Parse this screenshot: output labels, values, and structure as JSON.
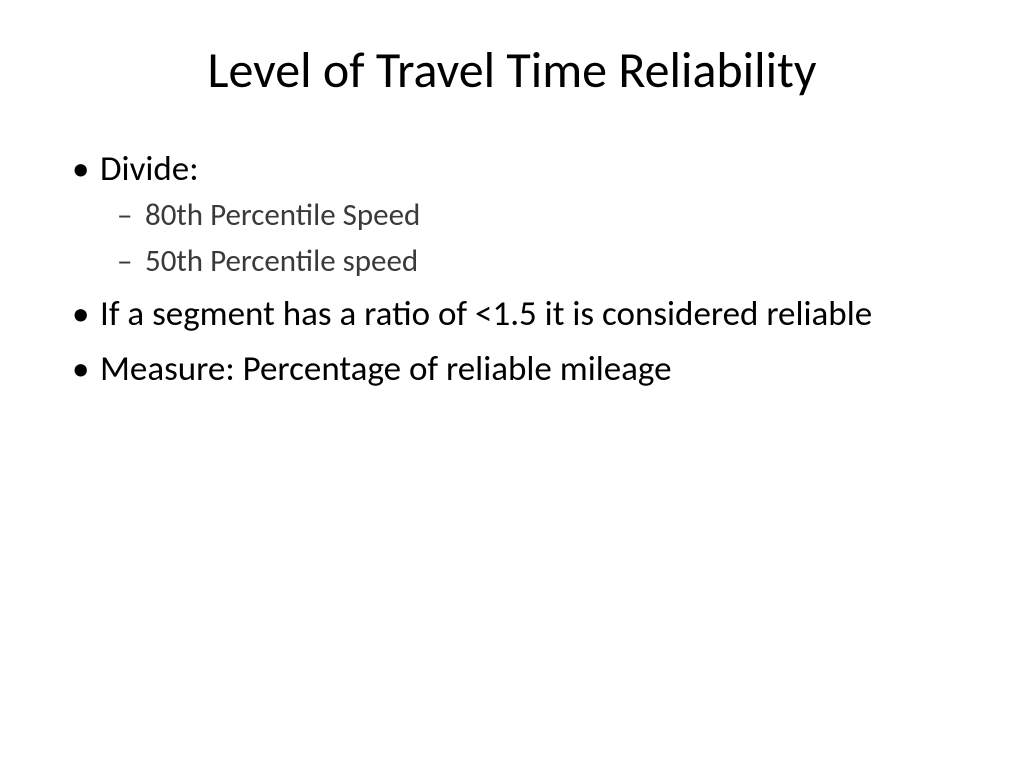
{
  "slide": {
    "title": "Level of Travel Time Reliability",
    "bullets": [
      {
        "text": "Divide:",
        "subbullets": [
          "80th Percentile Speed",
          "50th Percentile speed"
        ]
      },
      {
        "text": "If a segment has a ratio of <1.5 it is considered reliable",
        "subbullets": []
      },
      {
        "text": "Measure: Percentage of reliable mileage",
        "subbullets": []
      }
    ]
  },
  "style": {
    "background_color": "#ffffff",
    "text_color": "#000000",
    "subtext_color": "#3a3a3a",
    "title_fontsize": 50,
    "body_fontsize": 35,
    "sub_fontsize": 31,
    "font_family": "Calibri"
  }
}
